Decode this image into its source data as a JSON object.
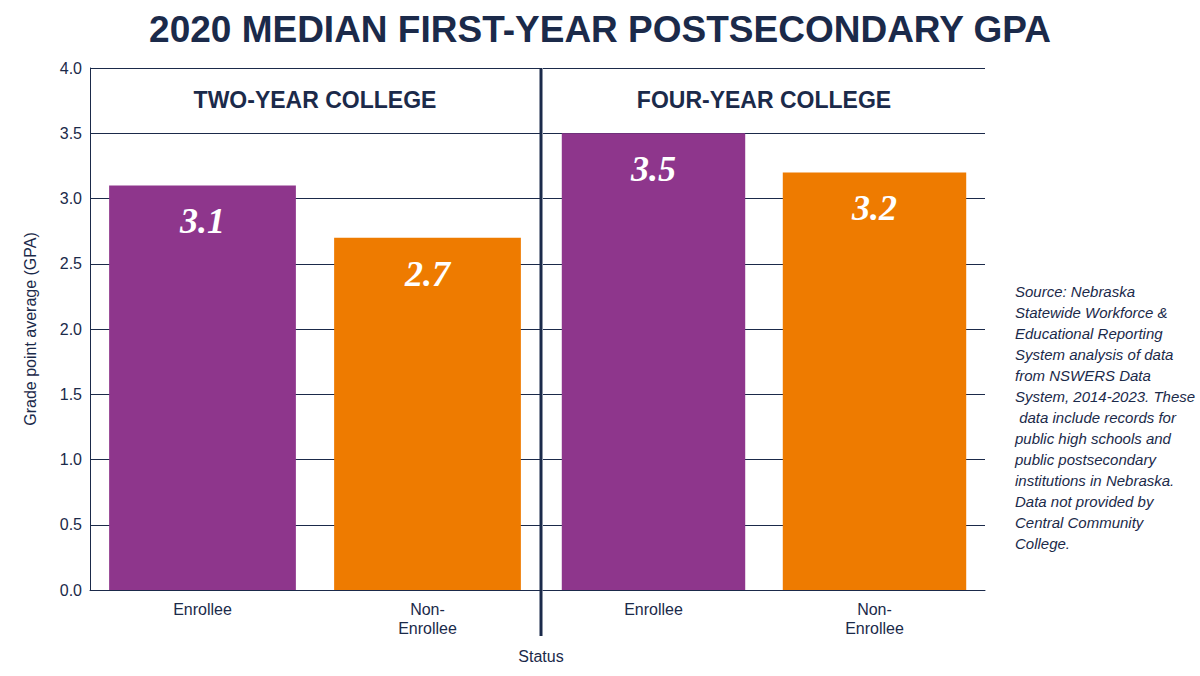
{
  "chart_data": {
    "type": "bar",
    "title": "2020 MEDIAN FIRST-YEAR POSTSECONDARY GPA",
    "y_label": "Grade point average (GPA)",
    "x_label": "Status",
    "note": "Source: Nebraska Statewide Workforce & Educational Reporting System analysis of data from NSWERS Data System, 2014-2023. These data include records for public high schools and public postsecondary institutions in Nebraska. Data not provided by Central Community College.",
    "ylim": [
      0,
      4
    ],
    "yticks": [
      {
        "value": 0,
        "label": "0.0"
      },
      {
        "value": 0.5,
        "label": "0.5"
      },
      {
        "value": 1,
        "label": "1.0"
      },
      {
        "value": 1.5,
        "label": "1.5"
      },
      {
        "value": 2,
        "label": "2.0"
      },
      {
        "value": 2.5,
        "label": "2.5"
      },
      {
        "value": 3,
        "label": "3.0"
      },
      {
        "value": 3.5,
        "label": "3.5"
      },
      {
        "value": 4,
        "label": "4.0"
      }
    ],
    "grid": true,
    "data_labels": true,
    "panels": [
      {
        "title": "TWO-YEAR COLLEGE",
        "categories": [
          "Enrollee",
          "Non-Enrollee"
        ],
        "values": [
          3.1,
          2.7
        ],
        "colors": [
          "#8e368c",
          "#ee7b00"
        ]
      },
      {
        "title": "FOUR-YEAR COLLEGE",
        "categories": [
          "Enrollee",
          "Non-Enrollee"
        ],
        "values": [
          3.5,
          3.2
        ],
        "colors": [
          "#8e368c",
          "#ee7b00"
        ]
      }
    ]
  }
}
